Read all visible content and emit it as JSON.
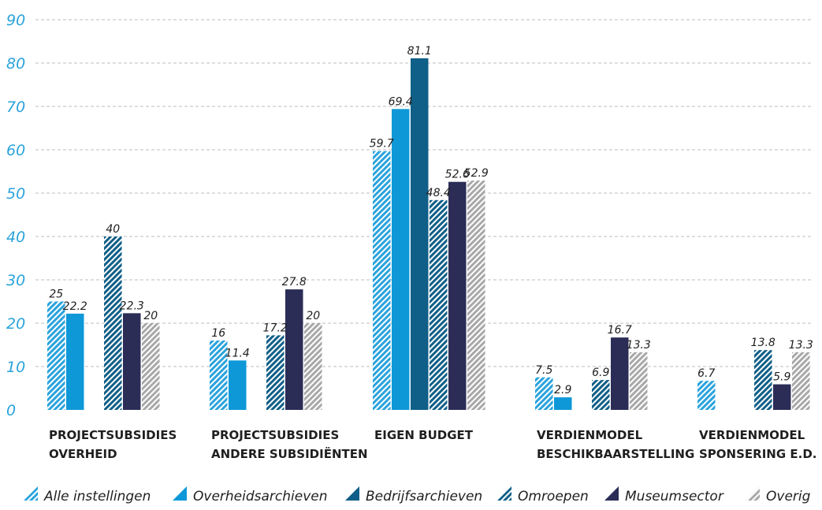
{
  "chart_data": {
    "type": "bar",
    "categories": [
      [
        "PROJECTSUBSIDIES",
        "OVERHEID"
      ],
      [
        "PROJECTSUBSIDIES",
        "ANDERE SUBSIDIËNTEN"
      ],
      [
        "EIGEN BUDGET"
      ],
      [
        "VERDIENMODEL",
        "BESCHIKBAARSTELLING"
      ],
      [
        "VERDIENMODEL",
        "SPONSERING E.D."
      ]
    ],
    "y_ticks": [
      0,
      10,
      20,
      30,
      40,
      50,
      60,
      70,
      80,
      90
    ],
    "ylim": [
      0,
      90
    ],
    "grid": true,
    "legend_position": "bottom",
    "series": [
      {
        "name": "Alle instellingen",
        "color": "#29a3dd",
        "pattern": "hatch",
        "values": [
          25,
          16,
          59.7,
          7.5,
          6.7
        ],
        "labels": [
          "25",
          "16",
          "59.7",
          "7.5",
          "6.7"
        ]
      },
      {
        "name": "Overheidsarchieven",
        "color": "#0e98d8",
        "pattern": "solid",
        "values": [
          22.2,
          11.4,
          69.4,
          2.9,
          null
        ],
        "labels": [
          "22.2",
          "11.4",
          "69.4",
          "2.9",
          ""
        ]
      },
      {
        "name": "Bedrijfsarchieven",
        "color": "#0f5f88",
        "pattern": "solid",
        "values": [
          null,
          null,
          81.1,
          null,
          null
        ],
        "labels": [
          "",
          "",
          "81.1",
          "",
          ""
        ]
      },
      {
        "name": "Omroepen",
        "color": "#0f5f88",
        "pattern": "hatch",
        "values": [
          40,
          17.2,
          48.4,
          6.9,
          13.8
        ],
        "labels": [
          "40",
          "17.2",
          "48.4",
          "6.9",
          "13.8"
        ]
      },
      {
        "name": "Museumsector",
        "color": "#2b2d57",
        "pattern": "solid",
        "values": [
          22.3,
          27.8,
          52.6,
          16.7,
          5.9
        ],
        "labels": [
          "22.3",
          "27.8",
          "52.6",
          "16.7",
          "5.9"
        ]
      },
      {
        "name": "Overig",
        "color": "#a8a8a8",
        "pattern": "hatch",
        "values": [
          20,
          20,
          52.9,
          13.3,
          13.3
        ],
        "labels": [
          "20",
          "20",
          "52.9",
          "13.3",
          "13.3"
        ]
      }
    ]
  }
}
